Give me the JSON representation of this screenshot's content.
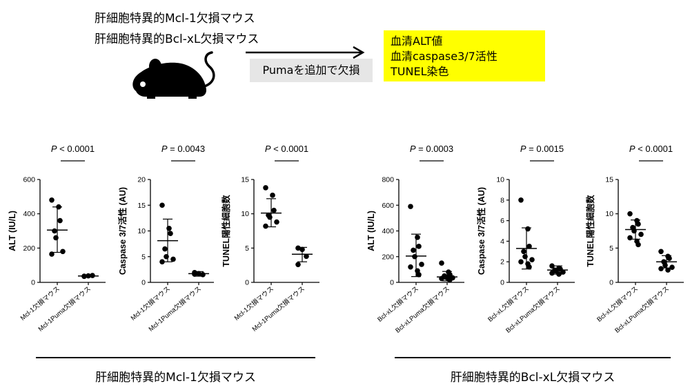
{
  "header": {
    "mouse_line1": "肝細胞特異的Mcl-1欠損マウス",
    "mouse_line2": "肝細胞特異的Bcl-xL欠損マウス",
    "arrow_label": "Pumaを追加で欠損",
    "results": [
      "血清ALT値",
      "血清caspase3/7活性",
      "TUNEL染色"
    ]
  },
  "colors": {
    "highlight": "#ffff00",
    "label_bg": "#e6e6e6",
    "marks": "#000000"
  },
  "groups": [
    {
      "label": "肝細胞特異的Mcl-1欠損マウス"
    },
    {
      "label": "肝細胞特異的Bcl-xL欠損マウス"
    }
  ],
  "chart_data": [
    {
      "type": "scatter",
      "ylabel": "ALT (IU/L)",
      "ylim": [
        0,
        600
      ],
      "yticks": [
        "0",
        "200",
        "400",
        "600"
      ],
      "categories": [
        "Mcl-1欠損マウス",
        "Mcl-1Puma欠損マウス"
      ],
      "stat_prefix": "P",
      "stat_text": " < 0.0001",
      "points": [
        [
          480,
          440,
          360,
          300,
          260,
          180,
          165
        ],
        [
          35,
          38,
          40,
          36
        ]
      ],
      "mean": [
        305,
        37
      ],
      "sd": [
        [
          175,
          440
        ],
        [
          32,
          42
        ]
      ]
    },
    {
      "type": "scatter",
      "ylabel": "Caspase 3/7活性 (AU)",
      "ylim": [
        0,
        20
      ],
      "yticks": [
        "0",
        "5",
        "10",
        "15",
        "20"
      ],
      "categories": [
        "Mcl-1欠損マウス",
        "Mcl-1Puma欠損マウス"
      ],
      "stat_prefix": "P",
      "stat_text": " = 0.0043",
      "points": [
        [
          15,
          10.5,
          9.5,
          6.5,
          5,
          4.5,
          4
        ],
        [
          1.9,
          1.7,
          1.5,
          1.6
        ]
      ],
      "mean": [
        8.1,
        1.7
      ],
      "sd": [
        [
          4,
          12.3
        ],
        [
          1.2,
          2.1
        ]
      ]
    },
    {
      "type": "scatter",
      "ylabel": "TUNEL陽性細胞数",
      "ylim": [
        0,
        15
      ],
      "yticks": [
        "0",
        "5",
        "10",
        "15"
      ],
      "categories": [
        "Mcl-1欠損マウス",
        "Mcl-1Puma欠損マウス"
      ],
      "stat_prefix": "P",
      "stat_text": " < 0.0001",
      "points": [
        [
          13.8,
          12.7,
          10.5,
          9.8,
          9.5,
          8.8,
          8.2
        ],
        [
          5.0,
          4.8,
          3.8,
          2.6
        ]
      ],
      "mean": [
        10.1,
        4.1
      ],
      "sd": [
        [
          8.1,
          12.2
        ],
        [
          3.0,
          5.1
        ]
      ]
    },
    {
      "type": "scatter",
      "ylabel": "ALT (IU/L)",
      "ylim": [
        0,
        800
      ],
      "yticks": [
        "0",
        "200",
        "400",
        "600",
        "800"
      ],
      "categories": [
        "Bcl-xL欠損マウス",
        "Bcl-xLPuma欠損マウス"
      ],
      "stat_prefix": "P",
      "stat_text": " = 0.0003",
      "points": [
        [
          590,
          350,
          280,
          250,
          200,
          140,
          120,
          90,
          60
        ],
        [
          150,
          80,
          60,
          50,
          40,
          35,
          30,
          25,
          20
        ]
      ],
      "mean": [
        205,
        42
      ],
      "sd": [
        [
          45,
          375
        ],
        [
          12,
          85
        ]
      ]
    },
    {
      "type": "scatter",
      "ylabel": "Caspase 3/7活性 (AU)",
      "ylim": [
        0,
        10
      ],
      "yticks": [
        "0",
        "2",
        "4",
        "6",
        "8",
        "10"
      ],
      "categories": [
        "Bcl-xL欠損マウス",
        "Bcl-xLPuma欠損マウス"
      ],
      "stat_prefix": "P",
      "stat_text": " = 0.0015",
      "points": [
        [
          8.0,
          5.2,
          3.5,
          3.0,
          2.5,
          2.2,
          2.0,
          1.8,
          1.5
        ],
        [
          1.6,
          1.4,
          1.3,
          1.2,
          1.1,
          1.0,
          0.9,
          0.8
        ]
      ],
      "mean": [
        3.3,
        1.2
      ],
      "sd": [
        [
          1.3,
          5.3
        ],
        [
          0.8,
          1.6
        ]
      ]
    },
    {
      "type": "scatter",
      "ylabel": "TUNEL陽性細胞数",
      "ylim": [
        0,
        15
      ],
      "yticks": [
        "0",
        "5",
        "10",
        "15"
      ],
      "categories": [
        "Bcl-xL欠損マウス",
        "Bcl-xLPuma欠損マウス"
      ],
      "stat_prefix": "P",
      "stat_text": " < 0.0001",
      "points": [
        [
          10.0,
          9.0,
          8.5,
          8.0,
          7.5,
          7.0,
          6.5,
          6.0,
          5.5
        ],
        [
          4.5,
          3.8,
          3.5,
          3.0,
          2.5,
          2.2,
          2.0,
          1.8
        ]
      ],
      "mean": [
        7.7,
        3.0
      ],
      "sd": [
        [
          6.3,
          9.1
        ],
        [
          2.1,
          3.9
        ]
      ]
    }
  ]
}
